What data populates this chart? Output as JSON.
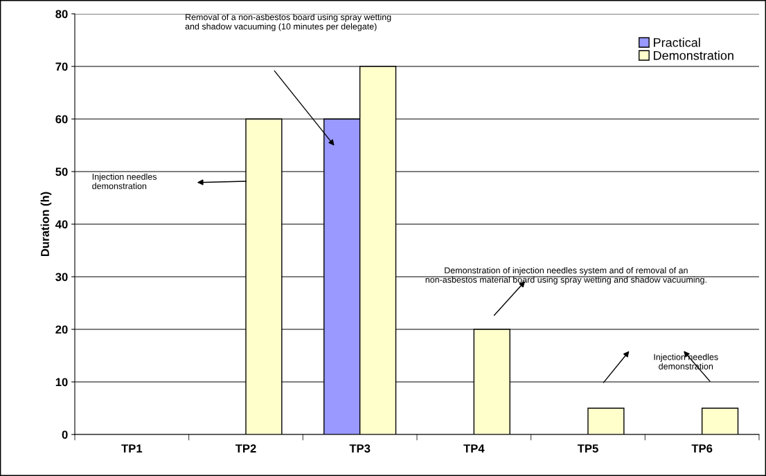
{
  "chart_data": {
    "type": "bar",
    "ylabel": "Duration (h)",
    "categories": [
      "TP1",
      "TP2",
      "TP3",
      "TP4",
      "TP5",
      "TP6"
    ],
    "series": [
      {
        "name": "Practical",
        "color": "#9999ff",
        "values": [
          null,
          null,
          60,
          null,
          null,
          null
        ]
      },
      {
        "name": "Demonstration",
        "color": "#ffffcc",
        "values": [
          null,
          60,
          70,
          20,
          5,
          5
        ]
      }
    ],
    "ylim": [
      0,
      80
    ],
    "yticks": [
      0,
      10,
      20,
      30,
      40,
      50,
      60,
      70,
      80
    ],
    "grid": "y",
    "legend": "top right",
    "annotations": [
      "Removal of a non-asbestos board using spray wetting and shadow vacuuming (10 minutes per delegate)",
      "Injection needles demonstration",
      "Demonstration of injection needles system and of removal of an non-asbestos material board using spray wetting and shadow vacuuming.",
      "Injection needles demonstration"
    ]
  }
}
